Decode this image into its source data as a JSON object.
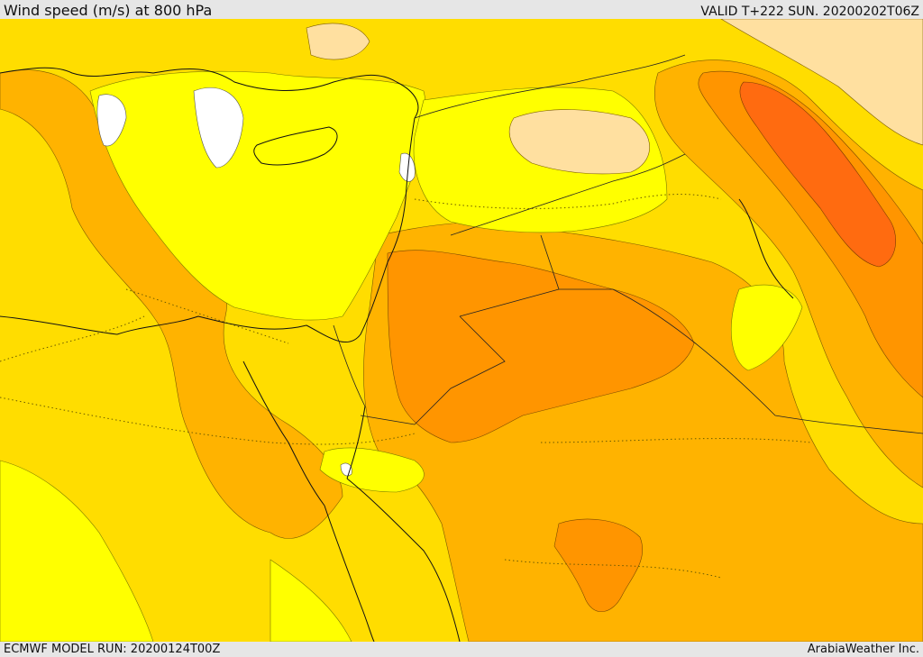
{
  "header": {
    "title": "Wind speed (m/s) at 800 hPa",
    "valid": "VALID T+222 SUN. 20200202T06Z"
  },
  "footer": {
    "model_run": "ECMWF MODEL RUN: 20200124T00Z",
    "credit": "ArabiaWeather Inc."
  },
  "colors": {
    "white_band": "#ffffff",
    "yellow_band": "#ffff00",
    "gold_band": "#ffdd00",
    "light_orange_band": "#ffb300",
    "orange_band": "#ff9500",
    "dark_orange_band": "#ff6b10",
    "beige_band": "#ffe0a0",
    "coastline": "#111111"
  }
}
